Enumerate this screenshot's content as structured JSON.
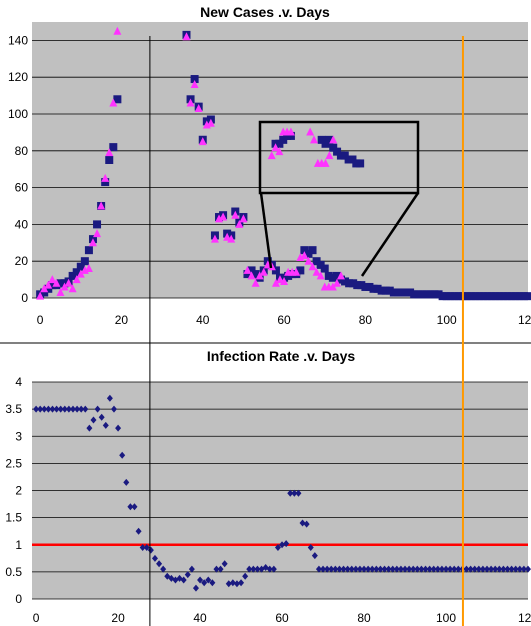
{
  "colors": {
    "plot_background": "#c0c0c0",
    "marker_square": "#1a1a80",
    "marker_triangle": "#ff33ff",
    "marker_diamond": "#1a1a80",
    "threshold_line": "#ff0000",
    "vertical_marker": "#ff9900",
    "divider": "#000000"
  },
  "vertical_markers": [
    {
      "x": 27,
      "color": "#000000",
      "spans": "both"
    },
    {
      "x": 104,
      "color": "#ff9900",
      "spans": "both"
    }
  ],
  "chart_data": [
    {
      "type": "scatter",
      "title": "New Cases .v. Days",
      "xlabel": "",
      "ylabel": "",
      "xlim": [
        -2,
        120
      ],
      "ylim": [
        0,
        150
      ],
      "xticks": [
        0,
        20,
        40,
        60,
        80,
        100,
        120
      ],
      "yticks": [
        0,
        20,
        40,
        60,
        80,
        100,
        120,
        140
      ],
      "grid": true,
      "legend": "none",
      "series": [
        {
          "marker": "square",
          "x": [
            0,
            1,
            2,
            3,
            4,
            5,
            6,
            7,
            8,
            9,
            10,
            11,
            12,
            13,
            14,
            15,
            16,
            17,
            18,
            19,
            36,
            37,
            38,
            39,
            40,
            41,
            42,
            43,
            44,
            45,
            46,
            47,
            48,
            49,
            50,
            51,
            52,
            53,
            54,
            55,
            56,
            57,
            58,
            59,
            60,
            61,
            62,
            63,
            64,
            65,
            66,
            67,
            68,
            69,
            70,
            71,
            72,
            73,
            74,
            75,
            76,
            77,
            78,
            79,
            80,
            81,
            82,
            83,
            84,
            85,
            86,
            87,
            88,
            89,
            90,
            91,
            92,
            93,
            94,
            95,
            96,
            97,
            98,
            99,
            100,
            101,
            102,
            103,
            104,
            105,
            106,
            107,
            108,
            109,
            110,
            111,
            112,
            113,
            114,
            115,
            116,
            117,
            118,
            119,
            120
          ],
          "y": [
            2,
            3,
            5,
            7,
            7,
            8,
            8,
            9,
            12,
            14,
            17,
            20,
            26,
            32,
            40,
            50,
            63,
            75,
            82,
            108,
            143,
            108,
            119,
            104,
            86,
            96,
            97,
            34,
            44,
            45,
            35,
            34,
            47,
            41,
            44,
            13,
            15,
            13,
            11,
            15,
            20,
            18,
            15,
            11,
            11,
            12,
            13,
            13,
            15,
            26,
            24,
            26,
            20,
            18,
            16,
            12,
            11,
            12,
            10,
            9,
            8,
            8,
            7,
            7,
            6,
            6,
            5,
            5,
            4,
            4,
            4,
            3,
            3,
            3,
            3,
            3,
            2,
            2,
            2,
            2,
            2,
            2,
            2,
            1,
            1,
            1,
            1,
            1,
            1,
            1,
            1,
            1,
            1,
            1,
            1,
            1,
            1,
            1,
            1,
            1,
            1,
            1,
            1,
            1,
            1
          ]
        },
        {
          "marker": "triangle",
          "x": [
            0,
            1,
            2,
            3,
            4,
            5,
            6,
            7,
            8,
            9,
            10,
            11,
            12,
            13,
            14,
            15,
            16,
            17,
            18,
            19,
            36,
            37,
            38,
            39,
            40,
            41,
            42,
            43,
            44,
            45,
            46,
            47,
            48,
            49,
            50,
            51,
            52,
            53,
            54,
            55,
            56,
            57,
            58,
            59,
            60,
            61,
            62,
            63,
            64,
            65,
            66,
            67,
            68,
            69,
            70,
            71,
            72,
            73,
            74
          ],
          "y": [
            1,
            5,
            7,
            10,
            8,
            3,
            6,
            8,
            5,
            10,
            13,
            15,
            16,
            30,
            35,
            50,
            65,
            79,
            106,
            145,
            142,
            106,
            116,
            103,
            85,
            94,
            95,
            32,
            43,
            44,
            33,
            32,
            45,
            40,
            43,
            15,
            12,
            8,
            12,
            14,
            18,
            17,
            8,
            10,
            9,
            14,
            14,
            14,
            22,
            23,
            20,
            17,
            14,
            12,
            6,
            6,
            6,
            8,
            12
          ]
        }
      ],
      "inset": {
        "x_range": [
          56,
          95
        ],
        "y_range": [
          0,
          14
        ],
        "note": "magnified view of days 56–95"
      }
    },
    {
      "type": "scatter",
      "title": "Infection Rate .v. Days",
      "xlabel": "",
      "ylabel": "",
      "xlim": [
        -1,
        120
      ],
      "ylim": [
        0,
        4
      ],
      "xticks": [
        0,
        20,
        40,
        60,
        80,
        100,
        120
      ],
      "yticks": [
        0,
        0.5,
        1,
        1.5,
        2,
        2.5,
        3,
        3.5,
        4
      ],
      "grid": true,
      "legend": "none",
      "threshold": 1,
      "series": [
        {
          "marker": "diamond",
          "x": [
            0,
            1,
            2,
            3,
            4,
            5,
            6,
            7,
            8,
            9,
            10,
            11,
            12,
            13,
            14,
            15,
            16,
            17,
            18,
            19,
            20,
            21,
            22,
            23,
            24,
            25,
            26,
            27,
            28,
            29,
            30,
            31,
            32,
            33,
            34,
            35,
            36,
            37,
            38,
            39,
            40,
            41,
            42,
            43,
            44,
            45,
            46,
            47,
            48,
            49,
            50,
            51,
            52,
            53,
            54,
            55,
            56,
            57,
            58,
            59,
            60,
            61,
            62,
            63,
            64,
            65,
            66,
            67,
            68,
            69,
            70,
            71,
            72,
            73,
            74,
            75,
            76,
            77,
            78,
            79,
            80,
            81,
            82,
            83,
            84,
            85,
            86,
            87,
            88,
            89,
            90,
            91,
            92,
            93,
            94,
            95,
            96,
            97,
            98,
            99,
            100,
            101,
            102,
            103,
            104,
            105,
            106,
            107,
            108,
            109,
            110,
            111,
            112,
            113,
            114,
            115,
            116,
            117,
            118,
            119,
            120
          ],
          "y": [
            3.5,
            3.5,
            3.5,
            3.5,
            3.5,
            3.5,
            3.5,
            3.5,
            3.5,
            3.5,
            3.5,
            3.5,
            3.5,
            3.15,
            3.3,
            3.5,
            3.35,
            3.2,
            3.7,
            3.5,
            3.15,
            2.65,
            2.15,
            1.7,
            1.7,
            1.25,
            0.95,
            0.95,
            0.9,
            0.75,
            0.65,
            0.55,
            0.42,
            0.38,
            0.35,
            0.38,
            0.35,
            0.45,
            0.55,
            0.2,
            0.35,
            0.3,
            0.35,
            0.3,
            0.55,
            0.55,
            0.65,
            0.28,
            0.3,
            0.28,
            0.3,
            0.42,
            0.55,
            0.55,
            0.55,
            0.55,
            0.58,
            0.55,
            0.55,
            0.95,
            1.0,
            1.02,
            1.95,
            1.95,
            1.95,
            1.4,
            1.38,
            0.95,
            0.8,
            0.55,
            0.55,
            0.55,
            0.55,
            0.55,
            0.55,
            0.55,
            0.55,
            0.55,
            0.55,
            0.55,
            0.55,
            0.55,
            0.55,
            0.55,
            0.55,
            0.55,
            0.55,
            0.55,
            0.55,
            0.55,
            0.55,
            0.55,
            0.55,
            0.55,
            0.55,
            0.55,
            0.55,
            0.55,
            0.55,
            0.55,
            0.55,
            0.55,
            0.55,
            0.55,
            0.55,
            0.55,
            0.55,
            0.55,
            0.55,
            0.55,
            0.55,
            0.55,
            0.55,
            0.55,
            0.55,
            0.55,
            0.55,
            0.55,
            0.55,
            0.55,
            0.55
          ]
        }
      ]
    }
  ]
}
